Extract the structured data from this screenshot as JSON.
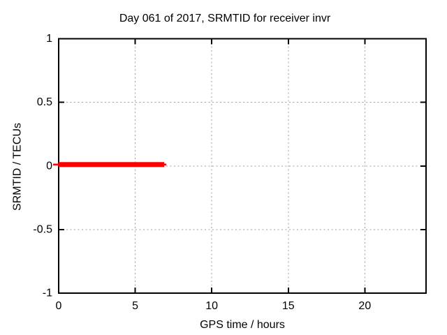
{
  "chart_data": {
    "type": "line",
    "title": "Day 061 of 2017, SRMTID for receiver invr",
    "xlabel": "GPS time / hours",
    "ylabel": "SRMTID / TECUs",
    "xlim": [
      0,
      24
    ],
    "ylim": [
      -1,
      1
    ],
    "xticks": [
      0,
      5,
      10,
      15,
      20
    ],
    "yticks": [
      -1,
      -0.5,
      0,
      0.5,
      1
    ],
    "grid": true,
    "legend": "none",
    "background_color": "#ffffff",
    "axis_color": "#000000",
    "grid_color": "#9e9e9e",
    "series": [
      {
        "name": "SRMTID",
        "color": "#ff0000",
        "line_width": 7,
        "x": [
          0,
          6.9
        ],
        "y": [
          0,
          0
        ]
      }
    ]
  }
}
